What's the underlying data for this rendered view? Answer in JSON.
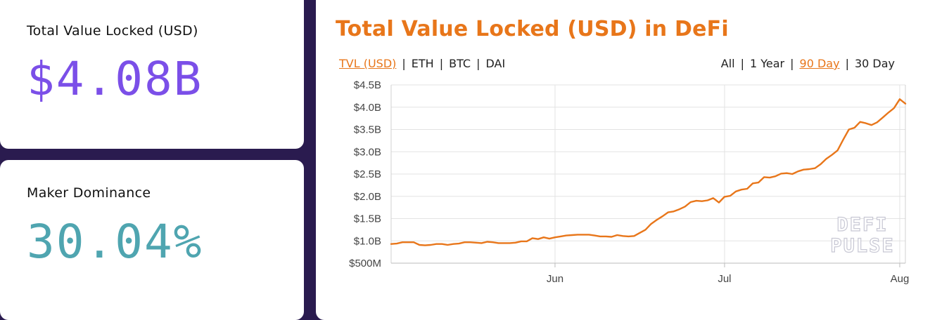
{
  "cards": {
    "tvl": {
      "label": "Total Value Locked (USD)",
      "value": "$4.08B",
      "color": "#7b4fe8"
    },
    "maker": {
      "label": "Maker Dominance",
      "value": "30.04%",
      "color": "#4fa5b0"
    }
  },
  "chart_panel": {
    "title": "Total Value Locked (USD) in DeFi",
    "title_color": "#e8761a",
    "currency_options": [
      {
        "label": "TVL (USD)",
        "active": true
      },
      {
        "label": "ETH",
        "active": false
      },
      {
        "label": "BTC",
        "active": false
      },
      {
        "label": "DAI",
        "active": false
      }
    ],
    "range_options": [
      {
        "label": "All",
        "active": false
      },
      {
        "label": "1 Year",
        "active": false
      },
      {
        "label": "90 Day",
        "active": true
      },
      {
        "label": "30 Day",
        "active": false
      }
    ],
    "active_color": "#e8761a",
    "watermark": [
      "DEFI",
      "PULSE"
    ]
  },
  "chart_data": {
    "type": "line",
    "title": "Total Value Locked (USD) in DeFi",
    "xlabel": "",
    "ylabel": "",
    "y_ticks": [
      {
        "value": 0.5,
        "label": "$500M"
      },
      {
        "value": 1.0,
        "label": "$1.0B"
      },
      {
        "value": 1.5,
        "label": "$1.5B"
      },
      {
        "value": 2.0,
        "label": "$2.0B"
      },
      {
        "value": 2.5,
        "label": "$2.5B"
      },
      {
        "value": 3.0,
        "label": "$3.0B"
      },
      {
        "value": 3.5,
        "label": "$3.5B"
      },
      {
        "value": 4.0,
        "label": "$4.0B"
      },
      {
        "value": 4.5,
        "label": "$4.5B"
      }
    ],
    "x_ticks": [
      {
        "date": "2020-06-01",
        "label": "Jun"
      },
      {
        "date": "2020-07-01",
        "label": "Jul"
      },
      {
        "date": "2020-08-01",
        "label": "Aug"
      }
    ],
    "xlim": [
      "2020-05-03",
      "2020-08-02"
    ],
    "ylim": [
      0.5,
      4.5
    ],
    "grid": true,
    "line_color": "#e8761a",
    "series": [
      {
        "values": [
          [
            "2020-05-03",
            0.93
          ],
          [
            "2020-05-04",
            0.94
          ],
          [
            "2020-05-05",
            0.97
          ],
          [
            "2020-05-06",
            0.97
          ],
          [
            "2020-05-07",
            0.97
          ],
          [
            "2020-05-08",
            0.91
          ],
          [
            "2020-05-09",
            0.9
          ],
          [
            "2020-05-10",
            0.91
          ],
          [
            "2020-05-11",
            0.93
          ],
          [
            "2020-05-12",
            0.93
          ],
          [
            "2020-05-13",
            0.91
          ],
          [
            "2020-05-14",
            0.93
          ],
          [
            "2020-05-15",
            0.94
          ],
          [
            "2020-05-16",
            0.97
          ],
          [
            "2020-05-17",
            0.97
          ],
          [
            "2020-05-18",
            0.96
          ],
          [
            "2020-05-19",
            0.95
          ],
          [
            "2020-05-20",
            0.98
          ],
          [
            "2020-05-21",
            0.97
          ],
          [
            "2020-05-22",
            0.95
          ],
          [
            "2020-05-23",
            0.95
          ],
          [
            "2020-05-24",
            0.95
          ],
          [
            "2020-05-25",
            0.96
          ],
          [
            "2020-05-26",
            0.99
          ],
          [
            "2020-05-27",
            0.99
          ],
          [
            "2020-05-28",
            1.06
          ],
          [
            "2020-05-29",
            1.04
          ],
          [
            "2020-05-30",
            1.08
          ],
          [
            "2020-05-31",
            1.05
          ],
          [
            "2020-06-01",
            1.08
          ],
          [
            "2020-06-02",
            1.1
          ],
          [
            "2020-06-03",
            1.12
          ],
          [
            "2020-06-04",
            1.13
          ],
          [
            "2020-06-05",
            1.14
          ],
          [
            "2020-06-06",
            1.14
          ],
          [
            "2020-06-07",
            1.14
          ],
          [
            "2020-06-08",
            1.12
          ],
          [
            "2020-06-09",
            1.1
          ],
          [
            "2020-06-10",
            1.1
          ],
          [
            "2020-06-11",
            1.09
          ],
          [
            "2020-06-12",
            1.13
          ],
          [
            "2020-06-13",
            1.11
          ],
          [
            "2020-06-14",
            1.1
          ],
          [
            "2020-06-15",
            1.11
          ],
          [
            "2020-06-16",
            1.18
          ],
          [
            "2020-06-17",
            1.25
          ],
          [
            "2020-06-18",
            1.38
          ],
          [
            "2020-06-19",
            1.47
          ],
          [
            "2020-06-20",
            1.55
          ],
          [
            "2020-06-21",
            1.64
          ],
          [
            "2020-06-22",
            1.66
          ],
          [
            "2020-06-23",
            1.71
          ],
          [
            "2020-06-24",
            1.77
          ],
          [
            "2020-06-25",
            1.87
          ],
          [
            "2020-06-26",
            1.9
          ],
          [
            "2020-06-27",
            1.89
          ],
          [
            "2020-06-28",
            1.91
          ],
          [
            "2020-06-29",
            1.96
          ],
          [
            "2020-06-30",
            1.86
          ],
          [
            "2020-07-01",
            1.99
          ],
          [
            "2020-07-02",
            2.01
          ],
          [
            "2020-07-03",
            2.11
          ],
          [
            "2020-07-04",
            2.15
          ],
          [
            "2020-07-05",
            2.17
          ],
          [
            "2020-07-06",
            2.29
          ],
          [
            "2020-07-07",
            2.31
          ],
          [
            "2020-07-08",
            2.43
          ],
          [
            "2020-07-09",
            2.42
          ],
          [
            "2020-07-10",
            2.45
          ],
          [
            "2020-07-11",
            2.51
          ],
          [
            "2020-07-12",
            2.52
          ],
          [
            "2020-07-13",
            2.5
          ],
          [
            "2020-07-14",
            2.56
          ],
          [
            "2020-07-15",
            2.6
          ],
          [
            "2020-07-16",
            2.61
          ],
          [
            "2020-07-17",
            2.63
          ],
          [
            "2020-07-18",
            2.72
          ],
          [
            "2020-07-19",
            2.84
          ],
          [
            "2020-07-20",
            2.93
          ],
          [
            "2020-07-21",
            3.03
          ],
          [
            "2020-07-22",
            3.27
          ],
          [
            "2020-07-23",
            3.5
          ],
          [
            "2020-07-24",
            3.54
          ],
          [
            "2020-07-25",
            3.67
          ],
          [
            "2020-07-26",
            3.64
          ],
          [
            "2020-07-27",
            3.6
          ],
          [
            "2020-07-28",
            3.66
          ],
          [
            "2020-07-29",
            3.77
          ],
          [
            "2020-07-30",
            3.88
          ],
          [
            "2020-07-31",
            3.98
          ],
          [
            "2020-08-01",
            4.18
          ],
          [
            "2020-08-02",
            4.08
          ]
        ]
      }
    ]
  }
}
